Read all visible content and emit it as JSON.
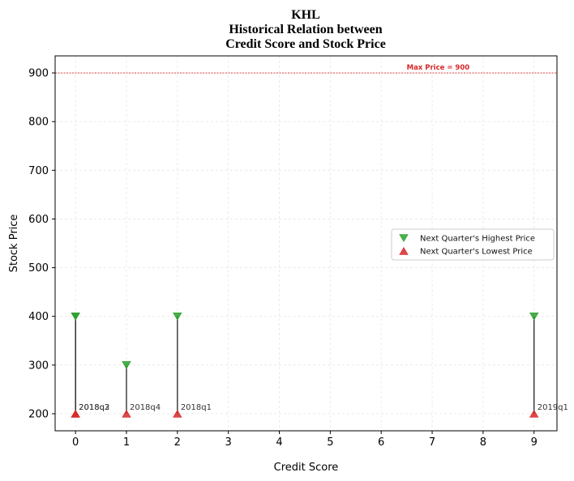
{
  "chart_data": {
    "type": "scatter",
    "title": "KHL\nHistorical Relation between\nCredit Score and Stock Price",
    "xlabel": "Credit Score",
    "ylabel": "Stock Price",
    "xlim": [
      -0.4,
      9.45
    ],
    "ylim": [
      165,
      935
    ],
    "x_ticks": [
      0,
      1,
      2,
      3,
      4,
      5,
      6,
      7,
      8,
      9
    ],
    "y_ticks": [
      200,
      300,
      400,
      500,
      600,
      700,
      800,
      900
    ],
    "grid": true,
    "legend_position": "right",
    "reference_line": {
      "y": 900,
      "label": "Max Price = 900",
      "color": "#d62728"
    },
    "series": [
      {
        "name": "Next Quarter's Highest Price",
        "marker": "triangle-down",
        "color": "#2ca02c",
        "points": [
          {
            "x": 0,
            "y": 400
          },
          {
            "x": 0,
            "y": 400
          },
          {
            "x": 1,
            "y": 300
          },
          {
            "x": 2,
            "y": 400
          },
          {
            "x": 9,
            "y": 400
          }
        ]
      },
      {
        "name": "Next Quarter's Lowest Price",
        "marker": "triangle-up",
        "color": "#d62728",
        "points": [
          {
            "x": 0,
            "y": 200
          },
          {
            "x": 0,
            "y": 200
          },
          {
            "x": 1,
            "y": 200
          },
          {
            "x": 2,
            "y": 200
          },
          {
            "x": 9,
            "y": 200
          }
        ]
      }
    ],
    "point_labels": [
      {
        "x": 0,
        "y": 200,
        "text": "2018q2"
      },
      {
        "x": 0,
        "y": 200,
        "text": "2018q3"
      },
      {
        "x": 1,
        "y": 200,
        "text": "2018q4"
      },
      {
        "x": 2,
        "y": 200,
        "text": "2018q1"
      },
      {
        "x": 9,
        "y": 200,
        "text": "2019q1"
      }
    ]
  }
}
